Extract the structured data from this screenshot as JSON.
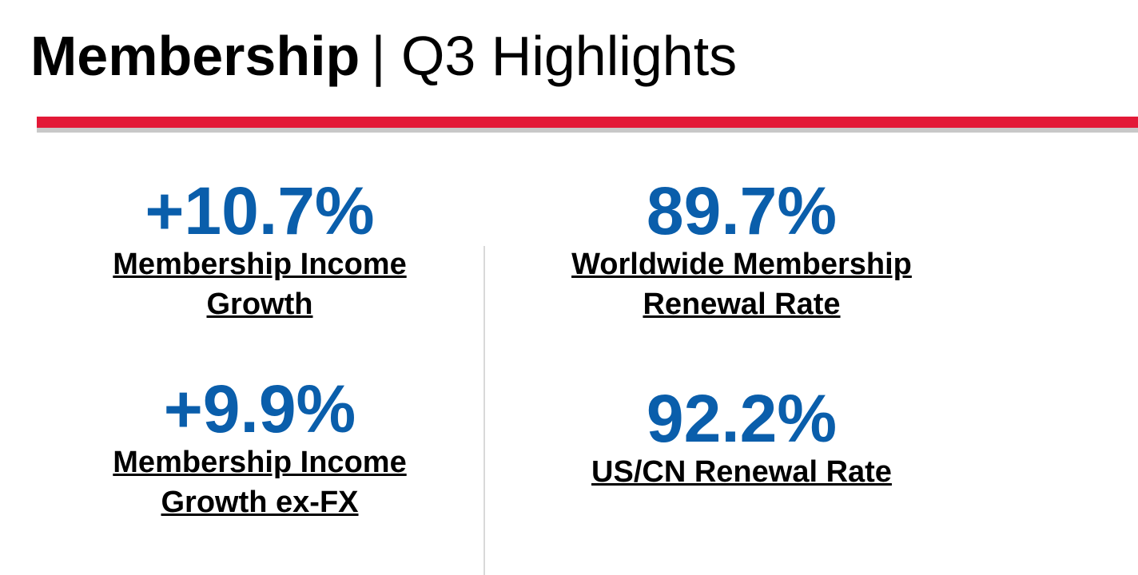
{
  "header": {
    "title": "Membership",
    "subtitle": "| Q3 Highlights"
  },
  "metrics": [
    {
      "value": "+10.7%",
      "label": [
        "Membership Income",
        "Growth"
      ]
    },
    {
      "value": "+9.9%",
      "label": [
        "Membership Income",
        "Growth ex-FX"
      ]
    },
    {
      "value": "89.7%",
      "label": [
        "Worldwide Membership",
        "Renewal Rate"
      ]
    },
    {
      "value": "92.2%",
      "label": [
        "US/CN Renewal Rate"
      ]
    }
  ]
}
